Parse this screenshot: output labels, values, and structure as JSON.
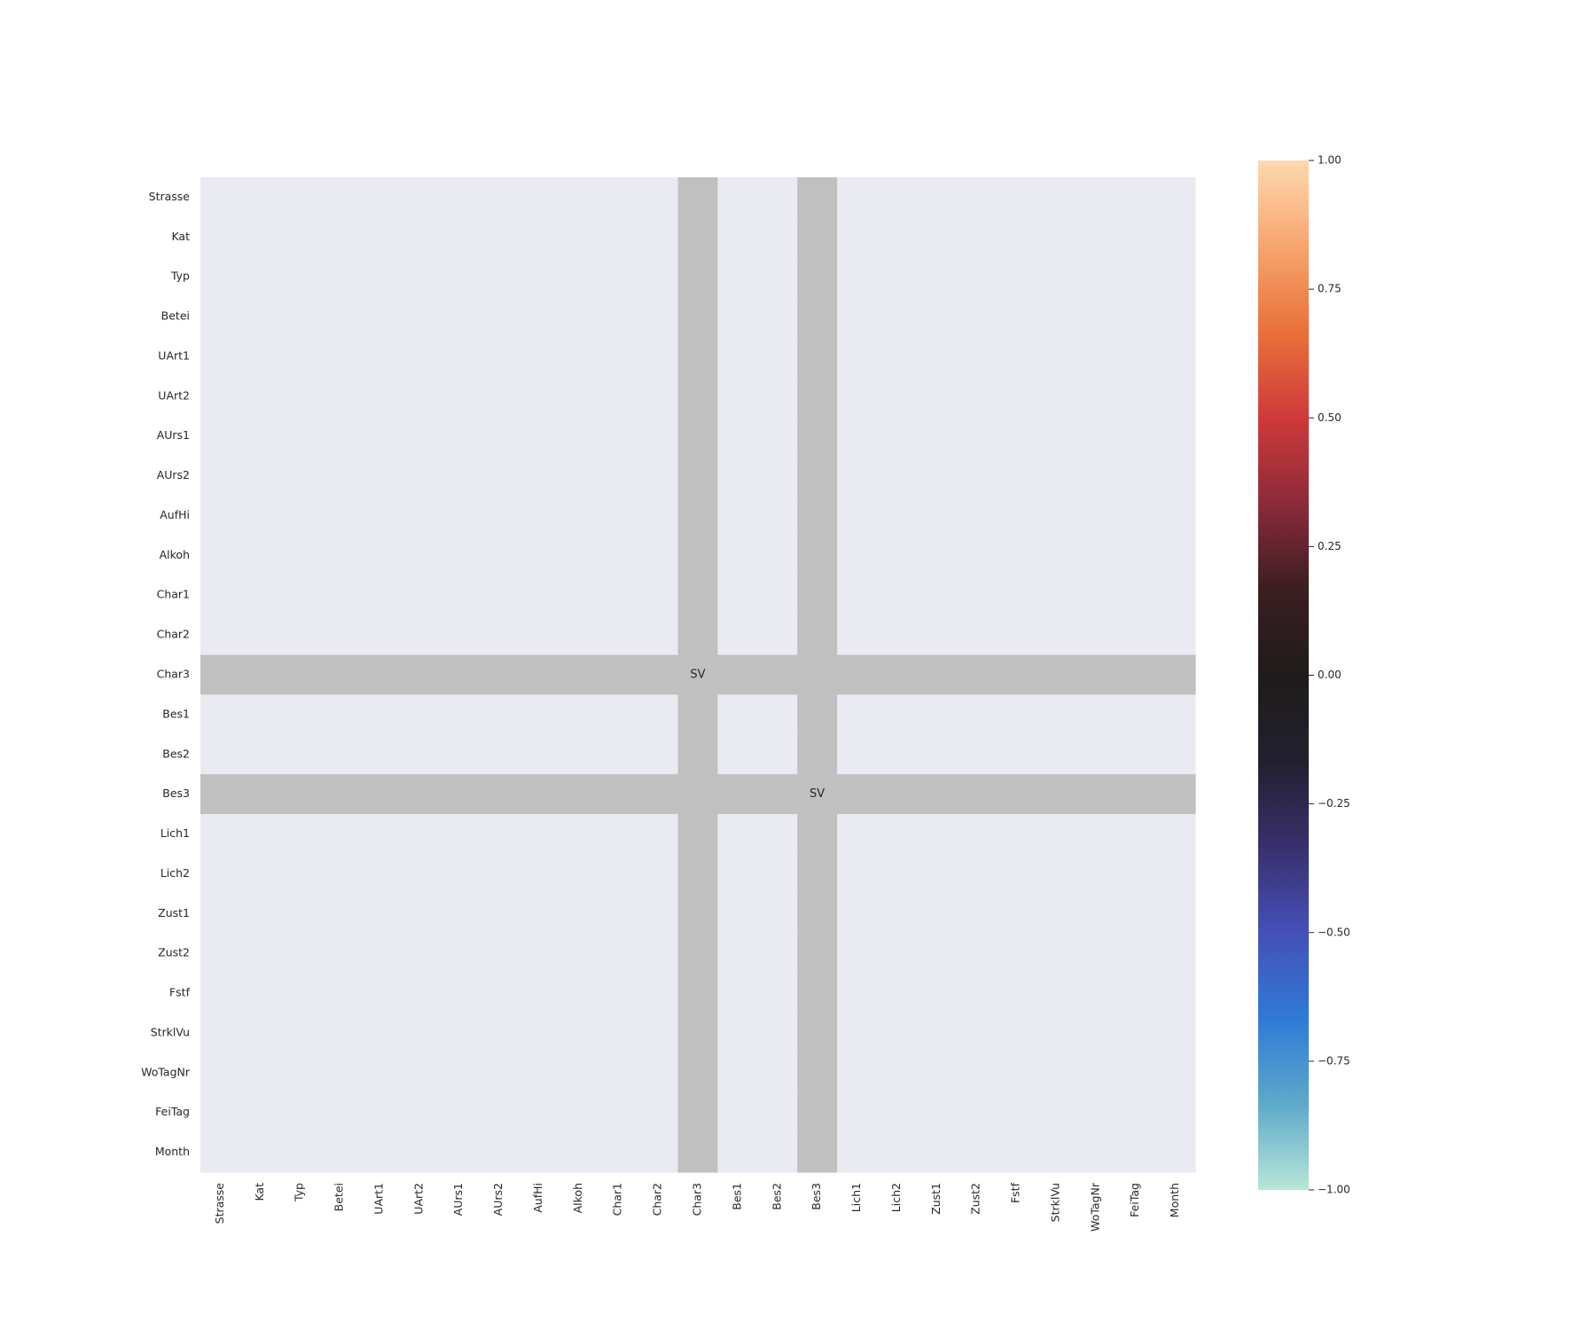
{
  "chart_data": {
    "type": "heatmap",
    "title": "",
    "xlabel": "",
    "ylabel": "",
    "rows": [
      "Strasse",
      "Kat",
      "Typ",
      "Betei",
      "UArt1",
      "UArt2",
      "AUrs1",
      "AUrs2",
      "AufHi",
      "Alkoh",
      "Char1",
      "Char2",
      "Char3",
      "Bes1",
      "Bes2",
      "Bes3",
      "Lich1",
      "Lich2",
      "Zust1",
      "Zust2",
      "Fstf",
      "StrklVu",
      "WoTagNr",
      "FeiTag",
      "Month"
    ],
    "columns": [
      "Strasse",
      "Kat",
      "Typ",
      "Betei",
      "UArt1",
      "UArt2",
      "AUrs1",
      "AUrs2",
      "AufHi",
      "Alkoh",
      "Char1",
      "Char2",
      "Char3",
      "Bes1",
      "Bes2",
      "Bes3",
      "Lich1",
      "Lich2",
      "Zust1",
      "Zust2",
      "Fstf",
      "StrklVu",
      "WoTagNr",
      "FeiTag",
      "Month"
    ],
    "grey_rows": [
      "Char3",
      "Bes3"
    ],
    "grey_columns": [
      "Char3",
      "Bes3"
    ],
    "annotations": [
      {
        "row": "Char3",
        "column": "Char3",
        "text": "SV"
      },
      {
        "row": "Bes3",
        "column": "Bes3",
        "text": "SV"
      }
    ],
    "colorbar": {
      "min": -1.0,
      "max": 1.0,
      "ticks": [
        1.0,
        0.75,
        0.5,
        0.25,
        0.0,
        -0.25,
        -0.5,
        -0.75,
        -1.0
      ],
      "tick_labels": [
        "1.00",
        "0.75",
        "0.50",
        "0.25",
        "0.00",
        "−0.25",
        "−0.50",
        "−0.75",
        "−1.00"
      ],
      "colormap": "icefire",
      "stops": [
        "#b8e6d8",
        "#5ea9ca",
        "#2f7ad6",
        "#4450b8",
        "#3a2f6e",
        "#22202e",
        "#1f1c1b",
        "#3b1e22",
        "#8c2a3a",
        "#cf3a3a",
        "#e9703a",
        "#f7a56e",
        "#ffd8b0"
      ]
    },
    "colors": {
      "cell_background": "#eaeaf2",
      "missing": "#c0c0c0"
    }
  }
}
